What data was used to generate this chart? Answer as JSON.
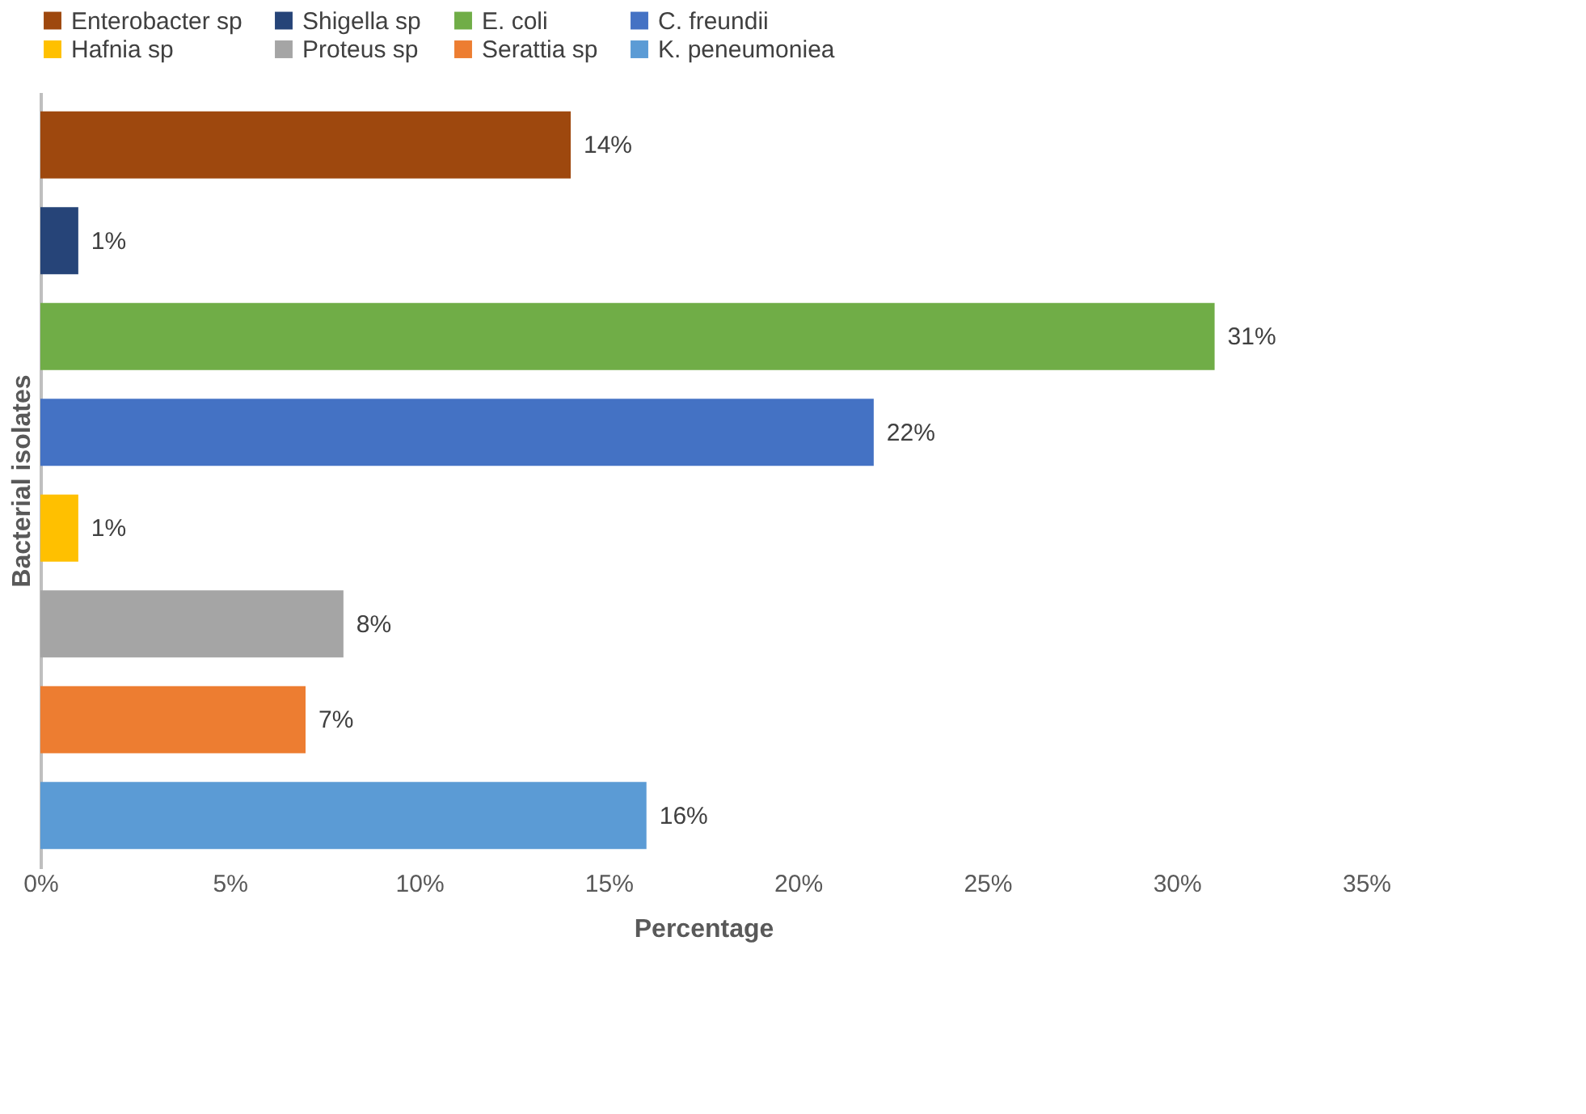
{
  "chart_data": {
    "type": "bar",
    "orientation": "horizontal",
    "xlabel": "Percentage",
    "ylabel": "Bacterial isolates",
    "categories": [
      null,
      null,
      null,
      null,
      null,
      null,
      null,
      null
    ],
    "series": [
      {
        "name": "Enterobacter sp",
        "color": "#9e480e",
        "values": [
          14,
          null,
          null,
          null,
          null,
          null,
          null,
          null
        ],
        "value_labels": [
          "14%",
          null,
          null,
          null,
          null,
          null,
          null,
          null
        ]
      },
      {
        "name": "Shigella sp",
        "color": "#264478",
        "values": [
          null,
          1,
          null,
          null,
          null,
          null,
          null,
          null
        ],
        "value_labels": [
          null,
          "1%",
          null,
          null,
          null,
          null,
          null,
          null
        ]
      },
      {
        "name": "E. coli",
        "color": "#70ad47",
        "values": [
          null,
          null,
          31,
          null,
          null,
          null,
          null,
          null
        ],
        "value_labels": [
          null,
          null,
          "31%",
          null,
          null,
          null,
          null,
          null
        ]
      },
      {
        "name": "C. freundii",
        "color": "#4472c4",
        "values": [
          null,
          null,
          null,
          22,
          null,
          null,
          null,
          null
        ],
        "value_labels": [
          null,
          null,
          null,
          "22%",
          null,
          null,
          null,
          null
        ]
      },
      {
        "name": "Hafnia sp",
        "color": "#ffc000",
        "values": [
          null,
          null,
          null,
          null,
          1,
          null,
          null,
          null
        ],
        "value_labels": [
          null,
          null,
          null,
          null,
          "1%",
          null,
          null,
          null
        ]
      },
      {
        "name": "Proteus sp",
        "color": "#a5a5a5",
        "values": [
          null,
          null,
          null,
          null,
          null,
          8,
          null,
          null
        ],
        "value_labels": [
          null,
          null,
          null,
          null,
          null,
          "8%",
          null,
          null
        ]
      },
      {
        "name": "Serattia sp",
        "color": "#ed7d31",
        "values": [
          null,
          null,
          null,
          null,
          null,
          null,
          7,
          null
        ],
        "value_labels": [
          null,
          null,
          null,
          null,
          null,
          null,
          "7%",
          null
        ]
      },
      {
        "name": "K. peneumoniea",
        "color": "#5b9bd5",
        "values": [
          null,
          null,
          null,
          null,
          null,
          null,
          null,
          16
        ],
        "value_labels": [
          null,
          null,
          null,
          null,
          null,
          null,
          null,
          "16%"
        ]
      }
    ],
    "xlim": [
      0,
      35
    ],
    "xticks": [
      {
        "value": 0,
        "label": "0%"
      },
      {
        "value": 5,
        "label": "5%"
      },
      {
        "value": 10,
        "label": "10%"
      },
      {
        "value": 15,
        "label": "15%"
      },
      {
        "value": 20,
        "label": "20%"
      },
      {
        "value": 25,
        "label": "25%"
      },
      {
        "value": 30,
        "label": "30%"
      },
      {
        "value": 35,
        "label": "35%"
      }
    ],
    "tick_labels": "x",
    "grid": false,
    "legend": "top"
  }
}
